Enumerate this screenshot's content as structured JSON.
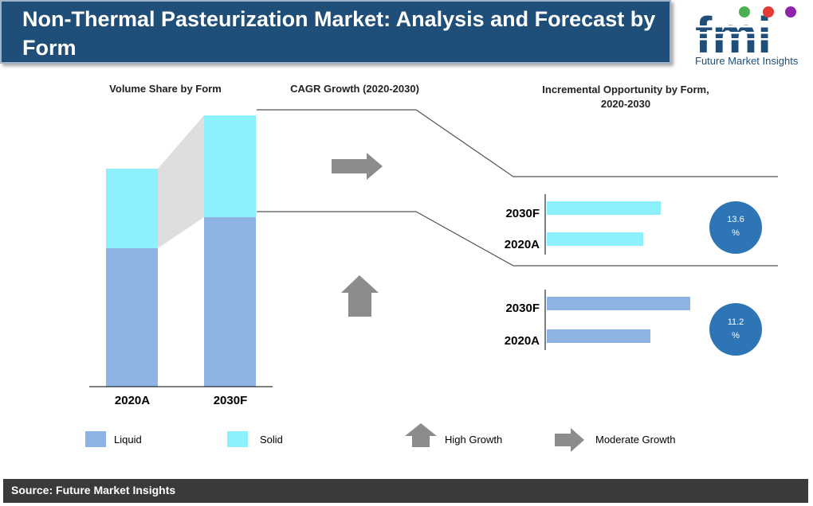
{
  "title": "Non-Thermal Pasteurization Market: Analysis and Forecast by Form",
  "logo": {
    "letters": "fmi",
    "tagline": "Future Market Insights",
    "colors": [
      "#4caf50",
      "#e53935",
      "#ef6c00",
      "#8e24aa"
    ]
  },
  "sections": {
    "volume_share": "Volume Share by Form",
    "cagr": "CAGR Growth (2020-2030)",
    "incremental": "Incremental Opportunity by Form, 2020-2030"
  },
  "source": "Source: Future Market Insights",
  "colors": {
    "liquid": "#8db4e2",
    "solid": "#8ef0fc",
    "circle": "#2e75b6",
    "arrow": "#8c8c8c",
    "title_bg": "#1f4e79"
  },
  "chart_data": [
    {
      "type": "bar",
      "stacked": true,
      "categories": [
        "2020A",
        "2030F"
      ],
      "series": [
        {
          "name": "Liquid",
          "values": [
            1.74,
            2.13
          ]
        },
        {
          "name": "Solid",
          "values": [
            1.0,
            1.28
          ]
        }
      ],
      "legend_position": "bottom"
    },
    {
      "type": "bar",
      "orientation": "horizontal",
      "categories": [
        "2030F",
        "2020A"
      ],
      "series": [
        {
          "name": "Solid",
          "values": [
            1.43,
            1.21
          ]
        }
      ],
      "annotation": {
        "value": "13.6",
        "unit": "%"
      },
      "indicator": "Moderate Growth"
    },
    {
      "type": "bar",
      "orientation": "horizontal",
      "categories": [
        "2030F",
        "2020A"
      ],
      "series": [
        {
          "name": "Liquid",
          "values": [
            1.8,
            1.3
          ]
        }
      ],
      "annotation": {
        "value": "11.2",
        "unit": "%"
      },
      "indicator": "High Growth"
    }
  ],
  "legend": {
    "liquid": "Liquid",
    "solid": "Solid",
    "high_growth": "High Growth",
    "moderate_growth": "Moderate Growth"
  }
}
